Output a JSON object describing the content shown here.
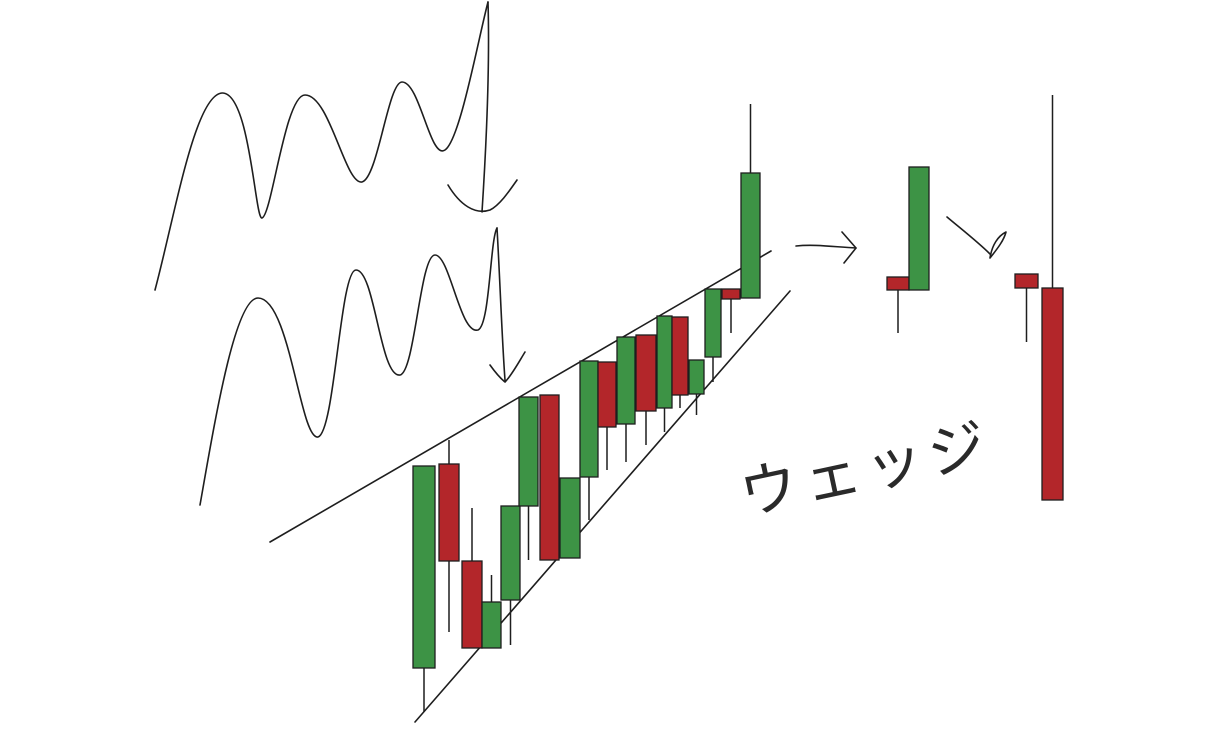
{
  "diagram": {
    "annotation": "ウェッジ",
    "colors": {
      "bullish": "#3d9345",
      "bearish": "#b3262a",
      "ink": "#1e1e1e",
      "background": "#ffffff"
    },
    "sketch_elements": [
      "wave-sketch-upper",
      "wave-sketch-lower",
      "rising-wedge-upper-line",
      "rising-wedge-lower-line",
      "candlestick-group-wedge",
      "breakout-arrow",
      "two-candle-pattern",
      "transition-arrow",
      "reversal-candle-pattern"
    ]
  }
}
